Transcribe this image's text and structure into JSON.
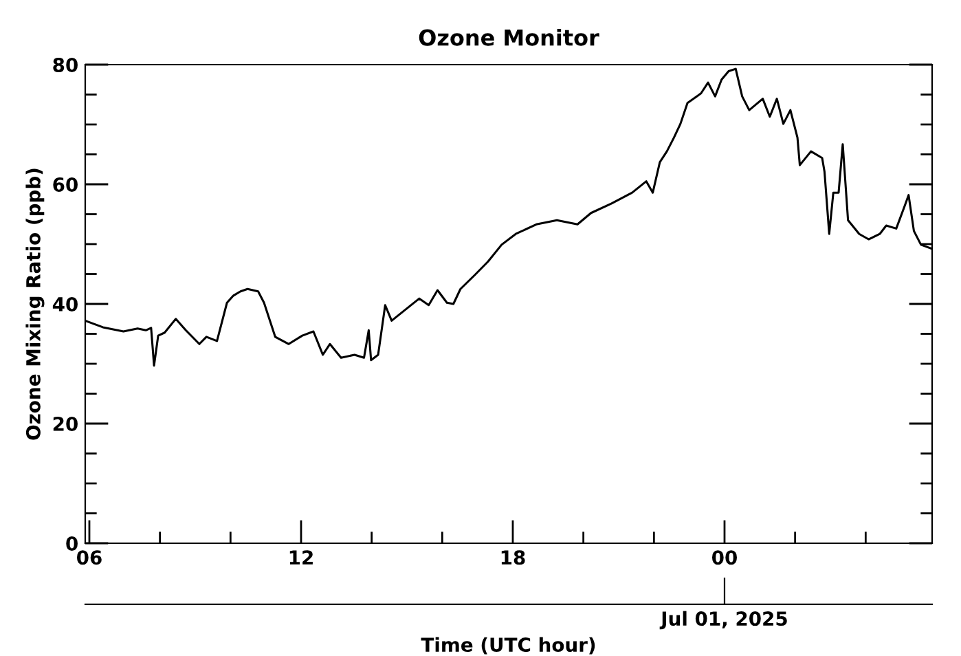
{
  "chart_data": {
    "type": "line",
    "title": "Ozone Monitor",
    "xlabel": "Time (UTC hour)",
    "ylabel": "Ozone Mixing Ratio (ppb)",
    "x": [
      "2025-06-30T05:53",
      "2025-06-30T06:23",
      "2025-06-30T06:58",
      "2025-06-30T07:22",
      "2025-06-30T07:36",
      "2025-06-30T07:45",
      "2025-06-30T07:50",
      "2025-06-30T07:57",
      "2025-06-30T08:08",
      "2025-06-30T08:27",
      "2025-06-30T08:44",
      "2025-06-30T09:07",
      "2025-06-30T09:19",
      "2025-06-30T09:37",
      "2025-06-30T09:54",
      "2025-06-30T10:05",
      "2025-06-30T10:17",
      "2025-06-30T10:29",
      "2025-06-30T10:47",
      "2025-06-30T10:57",
      "2025-06-30T11:16",
      "2025-06-30T11:39",
      "2025-06-30T12:02",
      "2025-06-30T12:21",
      "2025-06-30T12:37",
      "2025-06-30T12:49",
      "2025-06-30T13:08",
      "2025-06-30T13:31",
      "2025-06-30T13:47",
      "2025-06-30T13:55",
      "2025-06-30T13:59",
      "2025-06-30T14:11",
      "2025-06-30T14:23",
      "2025-06-30T14:34",
      "2025-06-30T14:58",
      "2025-06-30T15:21",
      "2025-06-30T15:37",
      "2025-06-30T15:52",
      "2025-06-30T16:08",
      "2025-06-30T16:19",
      "2025-06-30T16:31",
      "2025-06-30T16:55",
      "2025-06-30T17:18",
      "2025-06-30T17:41",
      "2025-06-30T18:05",
      "2025-06-30T18:40",
      "2025-06-30T19:15",
      "2025-06-30T19:50",
      "2025-06-30T20:13",
      "2025-06-30T20:48",
      "2025-06-30T21:23",
      "2025-06-30T21:47",
      "2025-06-30T21:58",
      "2025-06-30T22:10",
      "2025-06-30T22:22",
      "2025-06-30T22:34",
      "2025-06-30T22:45",
      "2025-06-30T22:57",
      "2025-06-30T23:20",
      "2025-06-30T23:32",
      "2025-06-30T23:44",
      "2025-06-30T23:55",
      "2025-07-01T00:07",
      "2025-07-01T00:19",
      "2025-07-01T00:30",
      "2025-07-01T00:42",
      "2025-07-01T01:05",
      "2025-07-01T01:17",
      "2025-07-01T01:29",
      "2025-07-01T01:40",
      "2025-07-01T01:52",
      "2025-07-01T02:04",
      "2025-07-01T02:08",
      "2025-07-01T02:27",
      "2025-07-01T02:46",
      "2025-07-01T02:50",
      "2025-07-01T02:58",
      "2025-07-01T03:05",
      "2025-07-01T03:14",
      "2025-07-01T03:21",
      "2025-07-01T03:30",
      "2025-07-01T03:49",
      "2025-07-01T04:05",
      "2025-07-01T04:24",
      "2025-07-01T04:35",
      "2025-07-01T04:52",
      "2025-07-01T05:06",
      "2025-07-01T05:13",
      "2025-07-01T05:22",
      "2025-07-01T05:34",
      "2025-07-01T05:53"
    ],
    "series": [
      {
        "color": "#000000",
        "values": [
          37.2,
          36.1,
          35.4,
          35.9,
          35.6,
          36,
          29.7,
          34.7,
          35.2,
          37.5,
          35.6,
          33.3,
          34.5,
          33.8,
          40.2,
          41.4,
          42.1,
          42.5,
          42.1,
          40.2,
          34.5,
          33.3,
          34.7,
          35.4,
          31.5,
          33.3,
          31,
          31.5,
          31,
          35.6,
          30.6,
          31.5,
          39.8,
          37.2,
          39.1,
          40.9,
          39.8,
          42.3,
          40.2,
          40,
          42.5,
          44.8,
          47.1,
          49.9,
          51.7,
          53.3,
          54,
          53.3,
          55.2,
          56.8,
          58.6,
          60.5,
          58.6,
          63.7,
          65.5,
          67.8,
          70.1,
          73.6,
          75.2,
          77,
          74.7,
          77.5,
          78.9,
          79.3,
          74.7,
          72.4,
          74.3,
          71.3,
          74.3,
          70.1,
          72.4,
          67.8,
          63.2,
          65.5,
          64.4,
          62.1,
          51.7,
          58.6,
          58.6,
          66.7,
          54,
          51.7,
          50.8,
          51.7,
          53.1,
          52.6,
          56.3,
          58.2,
          52.2,
          49.9,
          49.2
        ]
      }
    ],
    "xlim": [
      "2025-06-30T05:53",
      "2025-07-01T05:53"
    ],
    "xticks": [
      {
        "value": "2025-06-30T06:00",
        "label": "06"
      },
      {
        "value": "2025-06-30T08:00",
        "label": null
      },
      {
        "value": "2025-06-30T10:00",
        "label": null
      },
      {
        "value": "2025-06-30T12:00",
        "label": "12"
      },
      {
        "value": "2025-06-30T14:00",
        "label": null
      },
      {
        "value": "2025-06-30T16:00",
        "label": null
      },
      {
        "value": "2025-06-30T18:00",
        "label": "18"
      },
      {
        "value": "2025-06-30T20:00",
        "label": null
      },
      {
        "value": "2025-06-30T22:00",
        "label": null
      },
      {
        "value": "2025-07-01T00:00",
        "label": "00"
      },
      {
        "value": "2025-07-01T02:00",
        "label": null
      },
      {
        "value": "2025-07-01T04:00",
        "label": null
      }
    ],
    "ylim": [
      0,
      80
    ],
    "yticks": [
      0,
      {
        "value": 5,
        "label": null
      },
      {
        "value": 10,
        "label": null
      },
      {
        "value": 15,
        "label": null
      },
      20,
      {
        "value": 25,
        "label": null
      },
      {
        "value": 30,
        "label": null
      },
      {
        "value": 35,
        "label": null
      },
      40,
      {
        "value": 45,
        "label": null
      },
      {
        "value": 50,
        "label": null
      },
      {
        "value": 55,
        "label": null
      },
      60,
      {
        "value": 65,
        "label": null
      },
      {
        "value": 70,
        "label": null
      },
      {
        "value": 75,
        "label": null
      },
      80
    ],
    "annotations": [
      {
        "text": "Jul 01, 2025",
        "x": "2025-07-01T00:00"
      }
    ],
    "grid": false,
    "legend": false,
    "marker": "none",
    "line_style": "solid"
  }
}
